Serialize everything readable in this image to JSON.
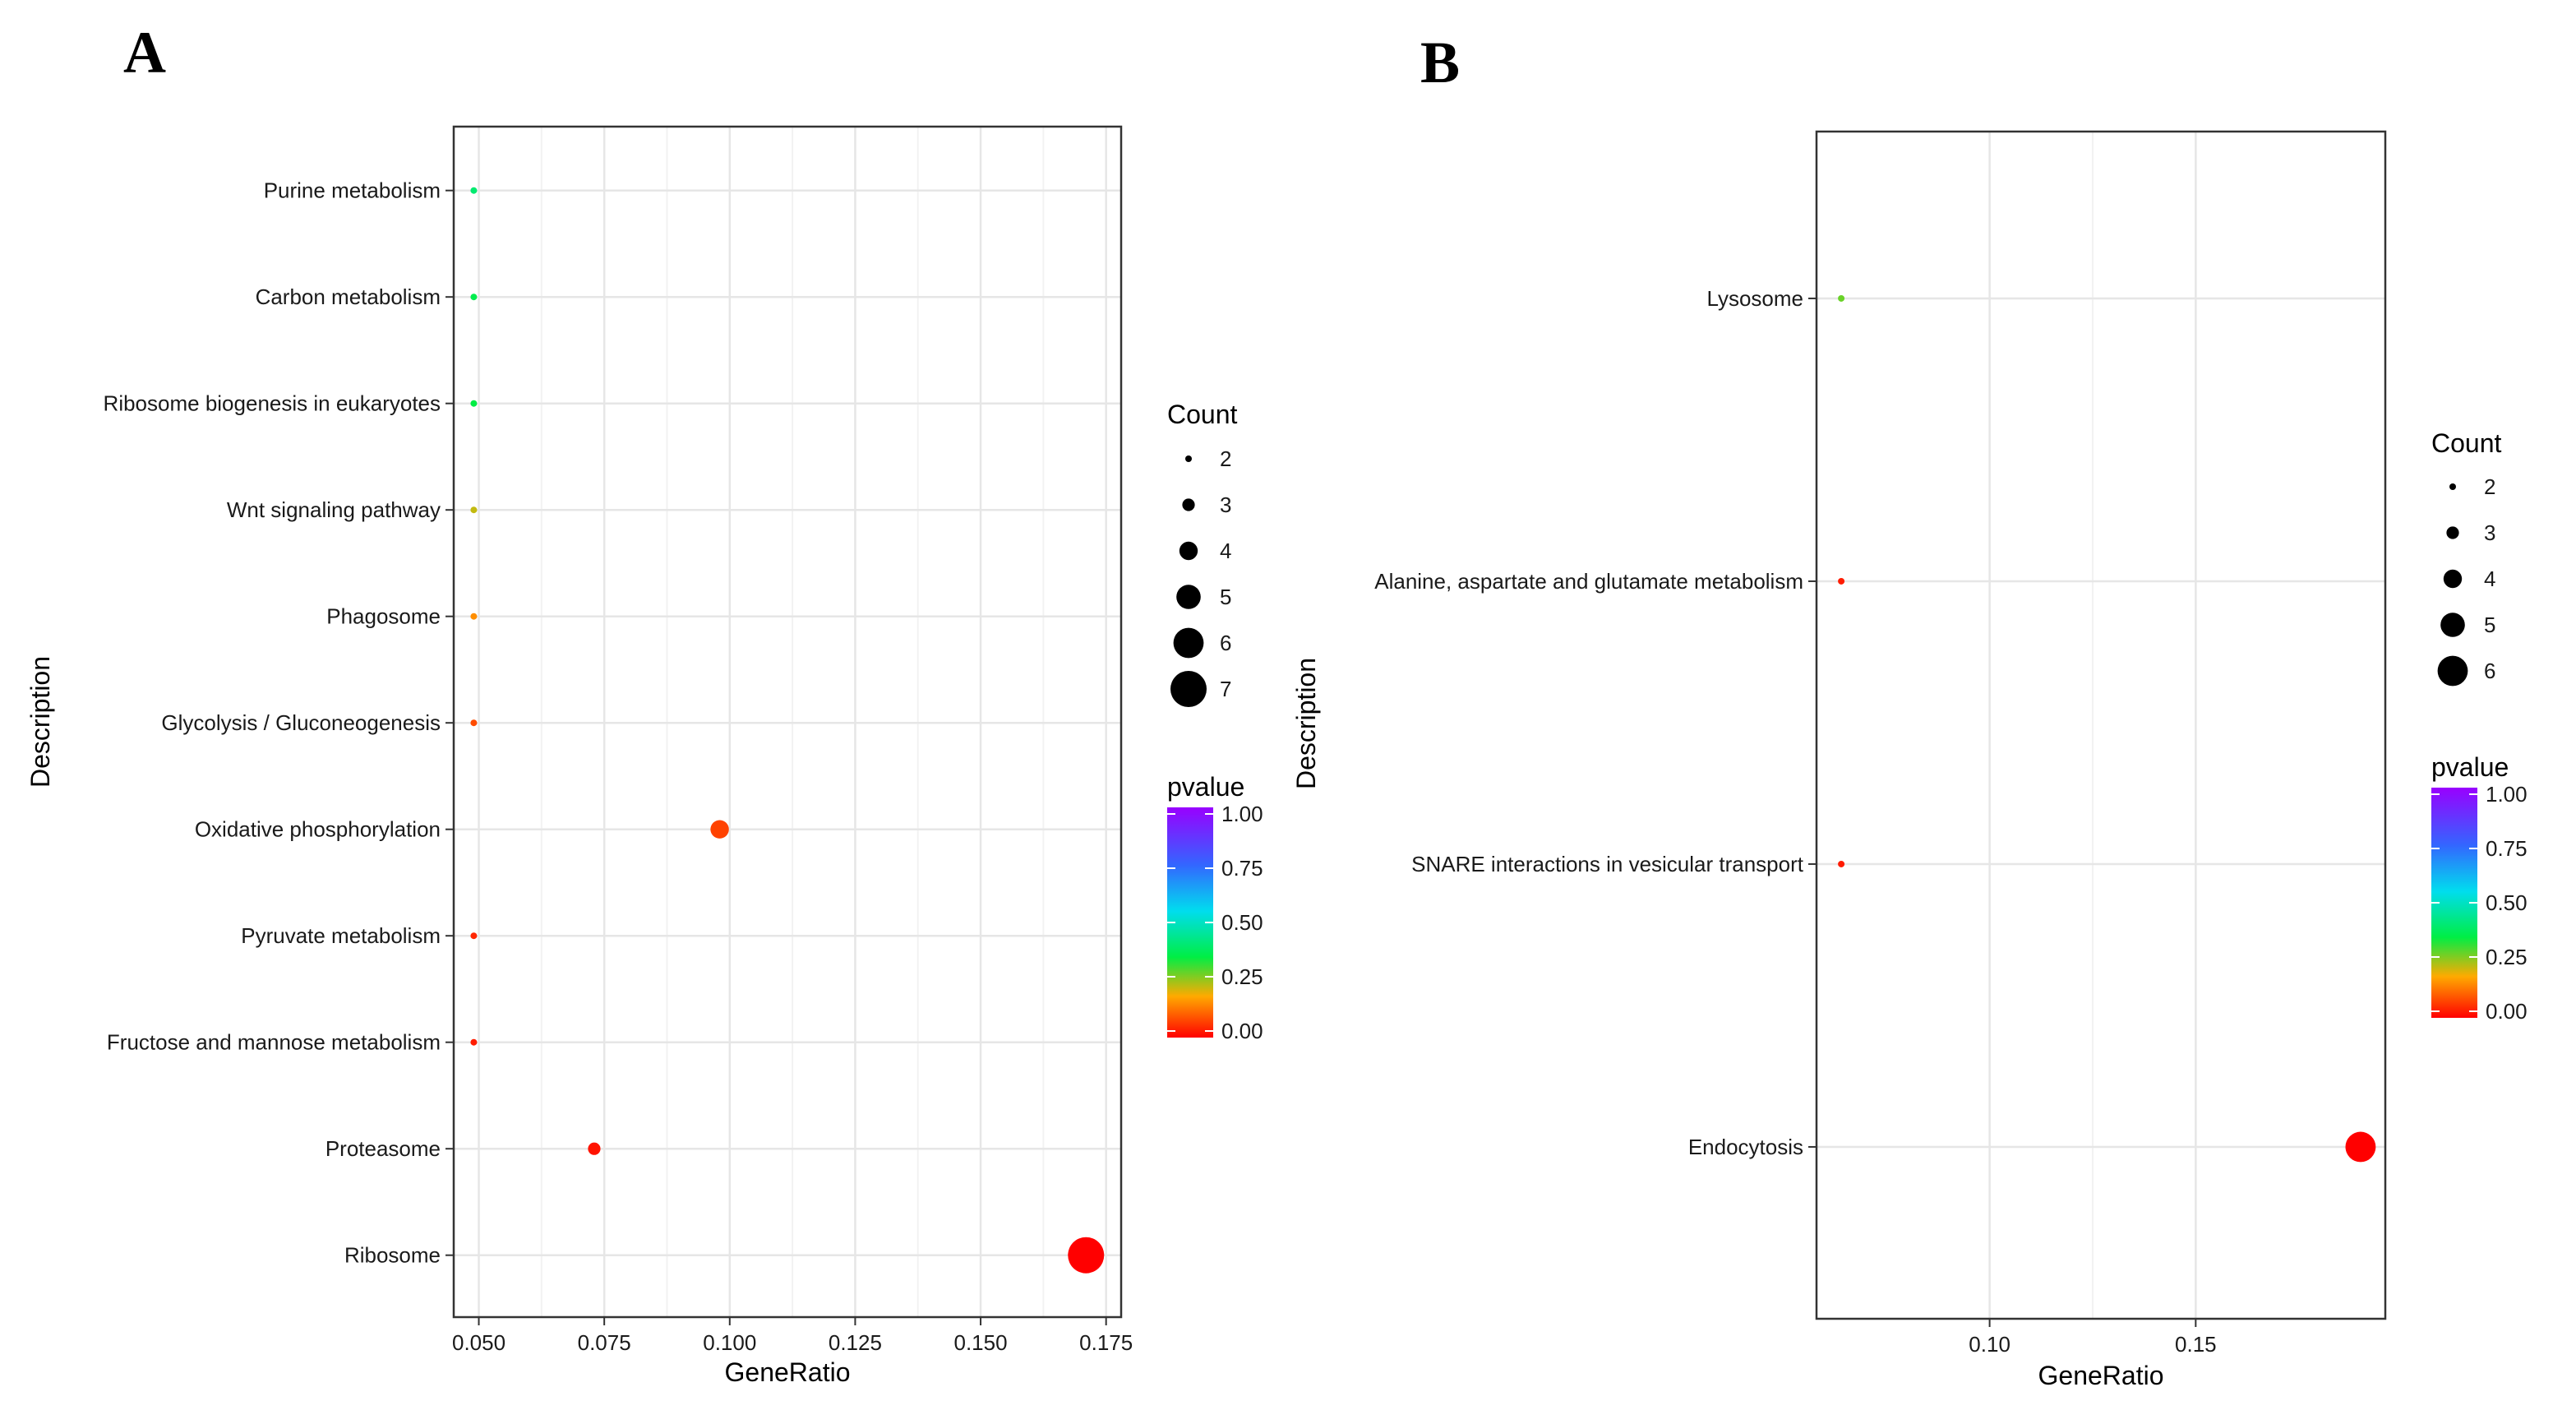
{
  "chart_data": [
    {
      "panel": "A",
      "type": "scatter",
      "subtype": "dot-plot",
      "xlabel": "GeneRatio",
      "ylabel": "Description",
      "xlim": [
        0.045,
        0.178
      ],
      "x_ticks": [
        0.05,
        0.075,
        0.1,
        0.125,
        0.15,
        0.175
      ],
      "x_tick_labels": [
        "0.050",
        "0.075",
        "0.100",
        "0.125",
        "0.150",
        "0.175"
      ],
      "grid": true,
      "categories": [
        "Purine metabolism",
        "Carbon metabolism",
        "Ribosome biogenesis in eukaryotes",
        "Wnt signaling pathway",
        "Phagosome",
        "Glycolysis / Gluconeogenesis",
        "Oxidative phosphorylation",
        "Pyruvate metabolism",
        "Fructose and mannose metabolism",
        "Proteasome",
        "Ribosome"
      ],
      "points": [
        {
          "category": "Purine metabolism",
          "gene_ratio": 0.049,
          "count": 2,
          "pvalue": 0.4
        },
        {
          "category": "Carbon metabolism",
          "gene_ratio": 0.049,
          "count": 2,
          "pvalue": 0.36
        },
        {
          "category": "Ribosome biogenesis in eukaryotes",
          "gene_ratio": 0.049,
          "count": 2,
          "pvalue": 0.35
        },
        {
          "category": "Wnt signaling pathway",
          "gene_ratio": 0.049,
          "count": 2,
          "pvalue": 0.22
        },
        {
          "category": "Phagosome",
          "gene_ratio": 0.049,
          "count": 2,
          "pvalue": 0.15
        },
        {
          "category": "Glycolysis / Gluconeogenesis",
          "gene_ratio": 0.049,
          "count": 2,
          "pvalue": 0.08
        },
        {
          "category": "Oxidative phosphorylation",
          "gene_ratio": 0.098,
          "count": 4,
          "pvalue": 0.07
        },
        {
          "category": "Pyruvate metabolism",
          "gene_ratio": 0.049,
          "count": 2,
          "pvalue": 0.04
        },
        {
          "category": "Fructose and mannose metabolism",
          "gene_ratio": 0.049,
          "count": 2,
          "pvalue": 0.03
        },
        {
          "category": "Proteasome",
          "gene_ratio": 0.073,
          "count": 3,
          "pvalue": 0.02
        },
        {
          "category": "Ribosome",
          "gene_ratio": 0.171,
          "count": 7,
          "pvalue": 0.0
        }
      ],
      "size_legend": {
        "title": "Count",
        "values": [
          2,
          3,
          4,
          5,
          6,
          7
        ]
      },
      "color_legend": {
        "title": "pvalue",
        "ticks": [
          "1.00",
          "0.75",
          "0.50",
          "0.25",
          "0.00"
        ]
      }
    },
    {
      "panel": "B",
      "type": "scatter",
      "subtype": "dot-plot",
      "xlabel": "GeneRatio",
      "ylabel": "Description",
      "xlim": [
        0.058,
        0.196
      ],
      "x_ticks": [
        0.1,
        0.15
      ],
      "x_tick_labels": [
        "0.10",
        "0.15"
      ],
      "grid": true,
      "categories": [
        "Lysosome",
        "Alanine, aspartate and glutamate metabolism",
        "SNARE interactions in vesicular transport",
        "Endocytosis"
      ],
      "points": [
        {
          "category": "Lysosome",
          "gene_ratio": 0.064,
          "count": 2,
          "pvalue": 0.28
        },
        {
          "category": "Alanine, aspartate and glutamate metabolism",
          "gene_ratio": 0.064,
          "count": 2,
          "pvalue": 0.03
        },
        {
          "category": "SNARE interactions in vesicular transport",
          "gene_ratio": 0.064,
          "count": 2,
          "pvalue": 0.03
        },
        {
          "category": "Endocytosis",
          "gene_ratio": 0.19,
          "count": 6,
          "pvalue": 0.0
        }
      ],
      "size_legend": {
        "title": "Count",
        "values": [
          2,
          3,
          4,
          5,
          6
        ]
      },
      "color_legend": {
        "title": "pvalue",
        "ticks": [
          "1.00",
          "0.75",
          "0.50",
          "0.25",
          "0.00"
        ]
      }
    }
  ]
}
